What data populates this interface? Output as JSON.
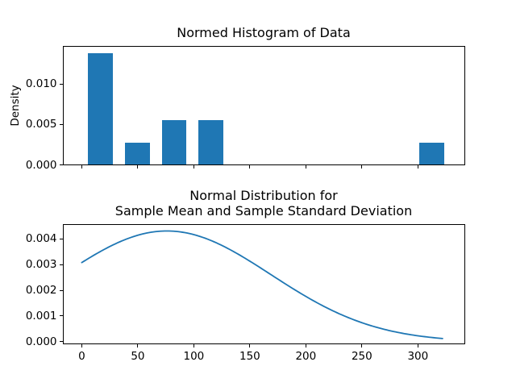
{
  "figure": {
    "background": "#ffffff",
    "text_color": "#000000",
    "accent_color": "#1f77b4"
  },
  "chart_data": [
    {
      "type": "bar",
      "title": "Normed Histogram of Data",
      "xlabel": "",
      "ylabel": "Density",
      "xlim": [
        -16.5,
        341.5
      ],
      "ylim": [
        0,
        0.01465
      ],
      "grid": false,
      "legend": null,
      "ytick_values": [
        0,
        0.005,
        0.01
      ],
      "ytick_labels": [
        "0.000",
        "0.005",
        "0.010"
      ],
      "xtick_values": [
        0,
        50,
        100,
        150,
        200,
        250,
        300
      ],
      "xtick_labels_visible": false,
      "bar_color": "#1f77b4",
      "bars": [
        {
          "x_left": 5.5,
          "x_right": 27.5,
          "density": 0.01384
        },
        {
          "x_left": 38.9,
          "x_right": 60.9,
          "density": 0.00277
        },
        {
          "x_left": 71.3,
          "x_right": 93.3,
          "density": 0.00554
        },
        {
          "x_left": 104.3,
          "x_right": 126.3,
          "density": 0.00554
        },
        {
          "x_left": 301.4,
          "x_right": 323.4,
          "density": 0.00277
        }
      ]
    },
    {
      "type": "line",
      "title": "Normal Distribution for\nSample Mean and Sample Standard Deviation",
      "xlabel": "",
      "ylabel": "",
      "xlim": [
        -16.5,
        341.5
      ],
      "ylim": [
        -8e-05,
        0.00455
      ],
      "grid": false,
      "legend": null,
      "ytick_values": [
        0,
        0.001,
        0.002,
        0.003,
        0.004
      ],
      "ytick_labels": [
        "0.000",
        "0.001",
        "0.002",
        "0.003",
        "0.004"
      ],
      "xtick_values": [
        0,
        50,
        100,
        150,
        200,
        250,
        300
      ],
      "xtick_labels": [
        "0",
        "50",
        "100",
        "150",
        "200",
        "250",
        "300"
      ],
      "line_color": "#1f77b4",
      "curve": {
        "distribution": "normal",
        "mean": 76,
        "std": 92.8,
        "peak_density": 0.0043,
        "x_start": 0,
        "x_end": 323.5,
        "points": [
          [
            0,
            0.00307
          ],
          [
            25,
            0.0037
          ],
          [
            50,
            0.00413
          ],
          [
            76,
            0.0043
          ],
          [
            100,
            0.00416
          ],
          [
            125,
            0.00374
          ],
          [
            150,
            0.00313
          ],
          [
            175,
            0.00243
          ],
          [
            200,
            0.00176
          ],
          [
            225,
            0.00118
          ],
          [
            250,
            0.00074
          ],
          [
            275,
            0.00043
          ],
          [
            300,
            0.00023
          ],
          [
            323.5,
            0.00012
          ]
        ]
      }
    }
  ]
}
